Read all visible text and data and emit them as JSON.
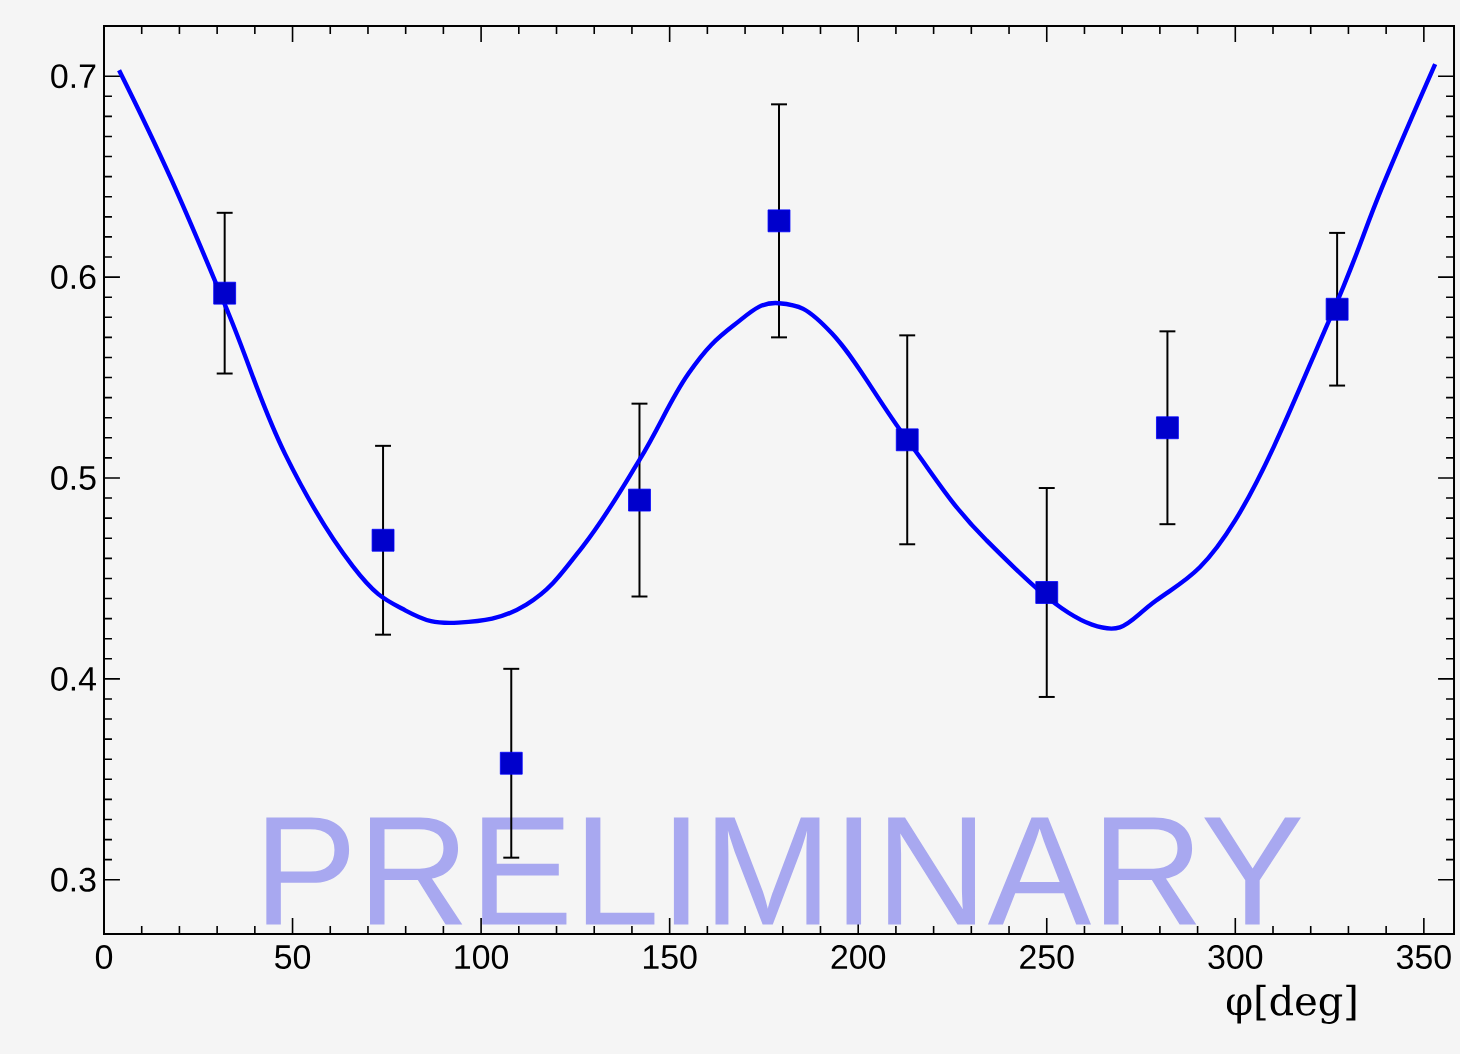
{
  "chart_data": {
    "type": "scatter",
    "xlabel": "φ[deg]",
    "annotations": [
      "PRELIMINARY"
    ],
    "xlim": [
      0,
      358
    ],
    "ylim": [
      0.273,
      0.725
    ],
    "xticks": [
      0,
      50,
      100,
      150,
      200,
      250,
      300,
      350
    ],
    "yticks": [
      0.3,
      0.4,
      0.5,
      0.6,
      0.7
    ],
    "grid": false,
    "series": [
      {
        "color": "#0000ff",
        "marker": "square",
        "x": [
          32,
          74,
          108,
          142,
          179,
          213,
          250,
          282,
          327
        ],
        "values": [
          0.592,
          0.469,
          0.358,
          0.489,
          0.628,
          0.519,
          0.443,
          0.525,
          0.584
        ],
        "errors": [
          0.04,
          0.047,
          0.047,
          0.048,
          0.058,
          0.052,
          0.052,
          0.048,
          0.038
        ]
      },
      {
        "type": "line",
        "color": "#0000ff",
        "marker": "none",
        "line_style": "solid",
        "x": [
          4,
          18,
          33,
          48,
          66,
          80,
          94,
          112,
          127,
          142,
          155,
          167,
          179,
          193,
          213,
          234,
          262,
          279,
          300,
          325,
          339,
          353
        ],
        "values": [
          0.703,
          0.648,
          0.582,
          0.512,
          0.456,
          0.434,
          0.428,
          0.437,
          0.466,
          0.509,
          0.552,
          0.576,
          0.587,
          0.572,
          0.519,
          0.469,
          0.427,
          0.439,
          0.479,
          0.579,
          0.645,
          0.706
        ]
      }
    ]
  }
}
